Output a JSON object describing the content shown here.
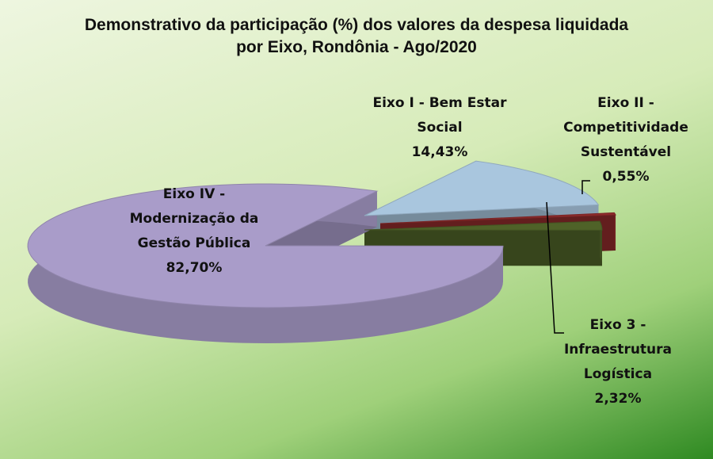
{
  "chart_data": {
    "type": "pie3d",
    "title": "Demonstrativo da participação (%) dos valores da despesa liquidada por Eixo, Rondônia - Ago/2020",
    "categories": [
      "Eixo I - Bem Estar Social",
      "Eixo II - Competitividade Sustentável",
      "Eixo 3 - Infraestrutura Logística",
      "Eixo IV - Modernização da Gestão Pública"
    ],
    "values": [
      14.43,
      0.55,
      2.32,
      82.7
    ],
    "value_labels": [
      "14,43%",
      "0,55%",
      "2,32%",
      "82,70%"
    ],
    "colors": [
      "#a9c6de",
      "#8e2b2b",
      "#4f6228",
      "#a99cc9"
    ]
  }
}
